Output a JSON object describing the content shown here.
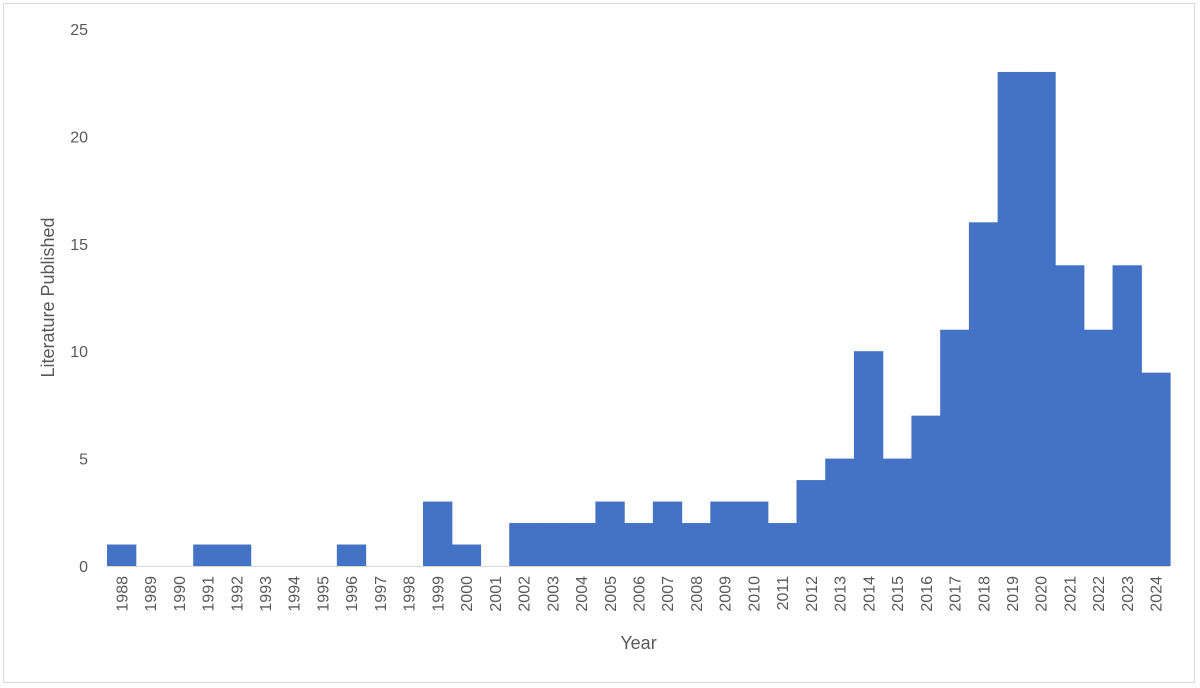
{
  "chart_data": {
    "type": "bar",
    "title": "",
    "xlabel": "Year",
    "ylabel": "Literature Published",
    "ylim": [
      0,
      25
    ],
    "yticks": [
      0,
      5,
      10,
      15,
      20,
      25
    ],
    "grid": false,
    "legend": "none",
    "bar_color": "#4472c4",
    "categories": [
      "1988",
      "1989",
      "1990",
      "1991",
      "1992",
      "1993",
      "1994",
      "1995",
      "1996",
      "1997",
      "1998",
      "1999",
      "2000",
      "2001",
      "2002",
      "2003",
      "2004",
      "2005",
      "2006",
      "2007",
      "2008",
      "2009",
      "2010",
      "2011",
      "2012",
      "2013",
      "2014",
      "2015",
      "2016",
      "2017",
      "2018",
      "2019",
      "2020",
      "2021",
      "2022",
      "2023",
      "2024"
    ],
    "values": [
      1,
      0,
      0,
      1,
      1,
      0,
      0,
      0,
      1,
      0,
      0,
      3,
      1,
      0,
      2,
      2,
      2,
      3,
      2,
      3,
      2,
      3,
      3,
      2,
      4,
      5,
      10,
      5,
      7,
      11,
      16,
      23,
      23,
      14,
      11,
      14,
      9
    ]
  }
}
